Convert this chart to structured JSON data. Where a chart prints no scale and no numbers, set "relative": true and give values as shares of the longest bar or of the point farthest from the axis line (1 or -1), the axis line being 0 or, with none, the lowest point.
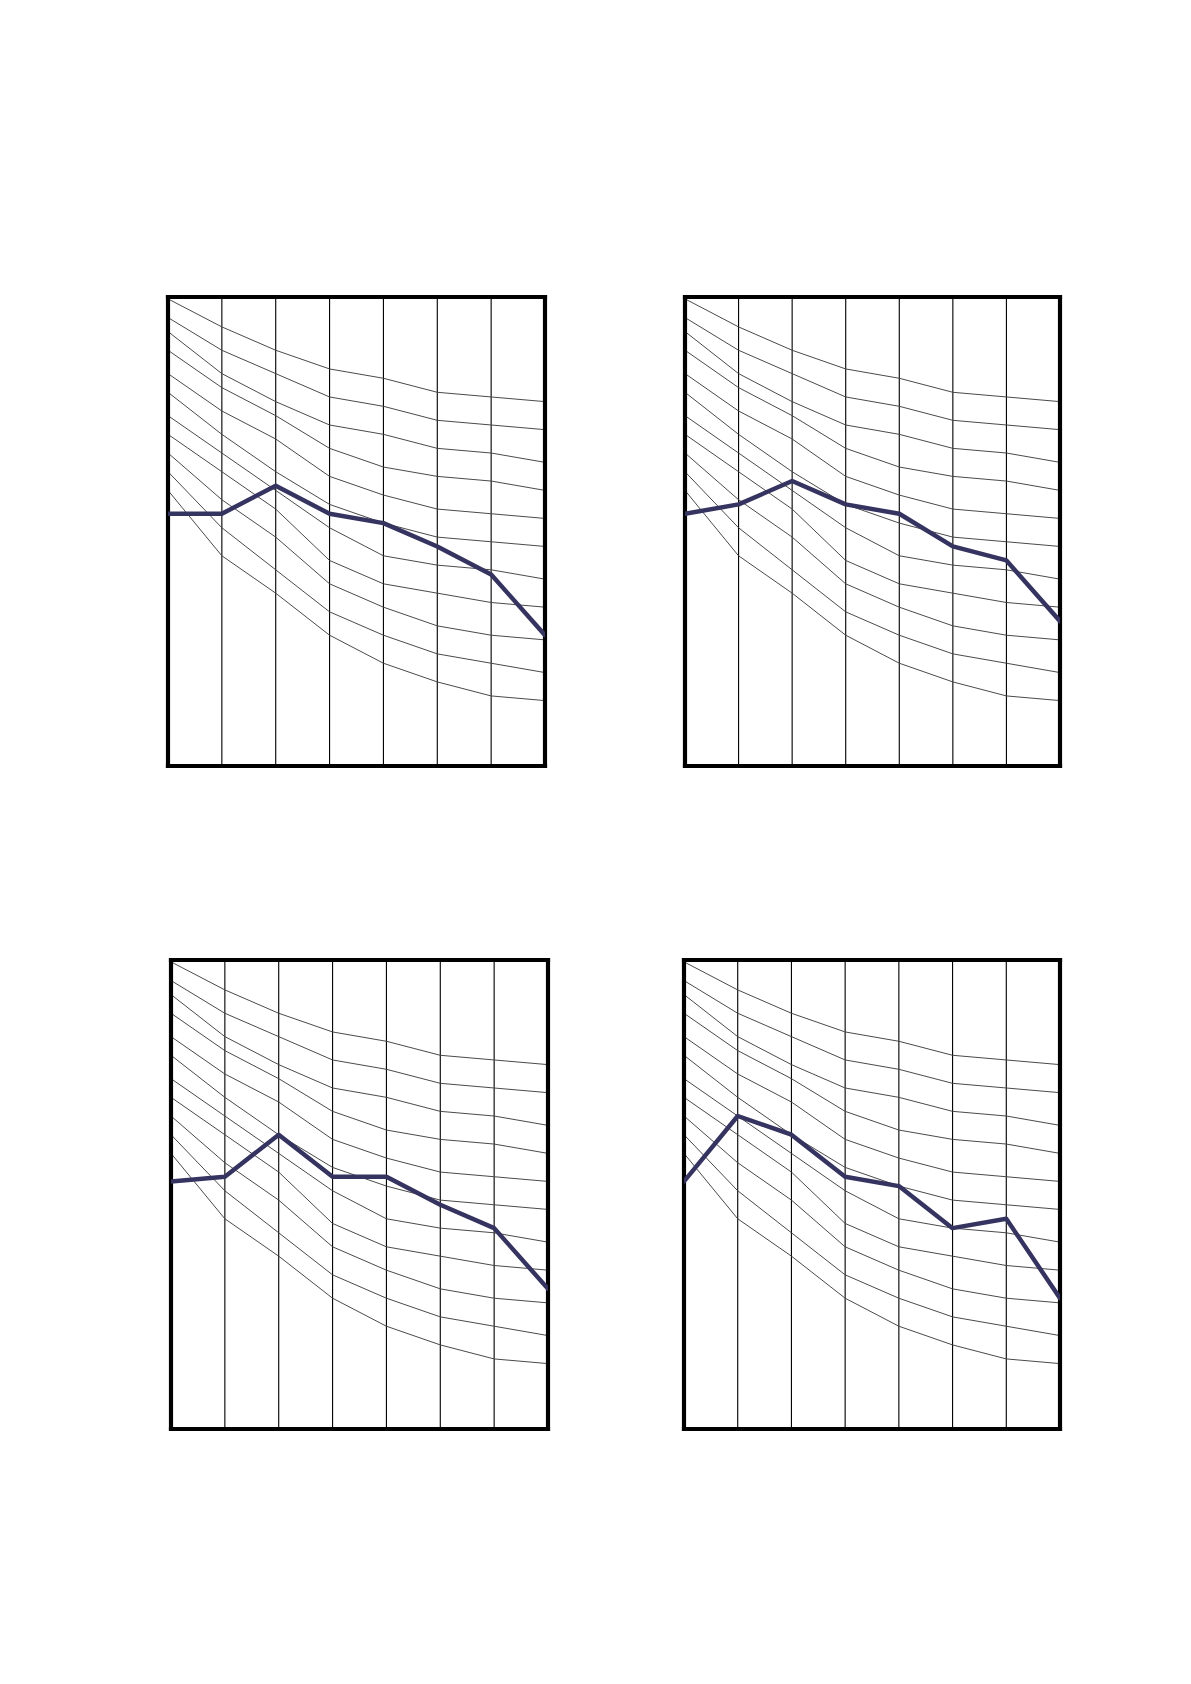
{
  "chart_data": [
    {
      "type": "line",
      "relative": true,
      "grid": "x",
      "categories": [
        null,
        null,
        null,
        null,
        null,
        null,
        null,
        null
      ],
      "series": [
        {
          "color": "#444444",
          "values": [
            1.0,
            0.94,
            0.89,
            0.85,
            0.83,
            0.8,
            0.79,
            0.78
          ]
        },
        {
          "color": "#444444",
          "values": [
            0.96,
            0.89,
            0.84,
            0.79,
            0.77,
            0.74,
            0.73,
            0.72
          ]
        },
        {
          "color": "#444444",
          "values": [
            0.93,
            0.84,
            0.78,
            0.73,
            0.71,
            0.68,
            0.67,
            0.65
          ]
        },
        {
          "color": "#444444",
          "values": [
            0.89,
            0.81,
            0.75,
            0.68,
            0.64,
            0.62,
            0.61,
            0.59
          ]
        },
        {
          "color": "#444444",
          "values": [
            0.84,
            0.76,
            0.7,
            0.62,
            0.58,
            0.55,
            0.54,
            0.53
          ]
        },
        {
          "color": "#444444",
          "values": [
            0.8,
            0.71,
            0.63,
            0.56,
            0.52,
            0.49,
            0.48,
            0.47
          ]
        },
        {
          "color": "#444444",
          "values": [
            0.75,
            0.67,
            0.59,
            0.51,
            0.45,
            0.43,
            0.42,
            0.4
          ]
        },
        {
          "color": "#444444",
          "values": [
            0.71,
            0.63,
            0.55,
            0.44,
            0.39,
            0.37,
            0.35,
            0.34
          ]
        },
        {
          "color": "#444444",
          "values": [
            0.67,
            0.57,
            0.49,
            0.39,
            0.34,
            0.3,
            0.28,
            0.27
          ]
        },
        {
          "color": "#444444",
          "values": [
            0.63,
            0.51,
            0.42,
            0.33,
            0.28,
            0.24,
            0.22,
            0.2
          ]
        },
        {
          "color": "#444444",
          "values": [
            0.59,
            0.45,
            0.37,
            0.28,
            0.22,
            0.18,
            0.15,
            0.14
          ]
        },
        {
          "color": "#35335f",
          "values": [
            0.54,
            0.54,
            0.6,
            0.54,
            0.52,
            0.47,
            0.41,
            0.28
          ]
        }
      ]
    },
    {
      "type": "line",
      "relative": true,
      "grid": "x",
      "categories": [
        null,
        null,
        null,
        null,
        null,
        null,
        null,
        null
      ],
      "series": [
        {
          "color": "#444444",
          "values": [
            1.0,
            0.94,
            0.89,
            0.85,
            0.83,
            0.8,
            0.79,
            0.78
          ]
        },
        {
          "color": "#444444",
          "values": [
            0.96,
            0.89,
            0.84,
            0.79,
            0.77,
            0.74,
            0.73,
            0.72
          ]
        },
        {
          "color": "#444444",
          "values": [
            0.93,
            0.84,
            0.78,
            0.73,
            0.71,
            0.68,
            0.67,
            0.65
          ]
        },
        {
          "color": "#444444",
          "values": [
            0.89,
            0.81,
            0.75,
            0.68,
            0.64,
            0.62,
            0.61,
            0.59
          ]
        },
        {
          "color": "#444444",
          "values": [
            0.84,
            0.76,
            0.7,
            0.62,
            0.58,
            0.55,
            0.54,
            0.53
          ]
        },
        {
          "color": "#444444",
          "values": [
            0.8,
            0.71,
            0.63,
            0.56,
            0.52,
            0.49,
            0.48,
            0.47
          ]
        },
        {
          "color": "#444444",
          "values": [
            0.75,
            0.67,
            0.59,
            0.51,
            0.45,
            0.43,
            0.42,
            0.4
          ]
        },
        {
          "color": "#444444",
          "values": [
            0.71,
            0.63,
            0.55,
            0.44,
            0.39,
            0.37,
            0.35,
            0.34
          ]
        },
        {
          "color": "#444444",
          "values": [
            0.67,
            0.57,
            0.49,
            0.39,
            0.34,
            0.3,
            0.28,
            0.27
          ]
        },
        {
          "color": "#444444",
          "values": [
            0.63,
            0.51,
            0.42,
            0.33,
            0.28,
            0.24,
            0.22,
            0.2
          ]
        },
        {
          "color": "#444444",
          "values": [
            0.59,
            0.45,
            0.37,
            0.28,
            0.22,
            0.18,
            0.15,
            0.14
          ]
        },
        {
          "color": "#35335f",
          "values": [
            0.54,
            0.56,
            0.61,
            0.56,
            0.54,
            0.47,
            0.44,
            0.31
          ]
        }
      ]
    },
    {
      "type": "line",
      "relative": true,
      "grid": "x",
      "categories": [
        null,
        null,
        null,
        null,
        null,
        null,
        null,
        null
      ],
      "series": [
        {
          "color": "#444444",
          "values": [
            1.0,
            0.94,
            0.89,
            0.85,
            0.83,
            0.8,
            0.79,
            0.78
          ]
        },
        {
          "color": "#444444",
          "values": [
            0.96,
            0.89,
            0.84,
            0.79,
            0.77,
            0.74,
            0.73,
            0.72
          ]
        },
        {
          "color": "#444444",
          "values": [
            0.93,
            0.84,
            0.78,
            0.73,
            0.71,
            0.68,
            0.67,
            0.65
          ]
        },
        {
          "color": "#444444",
          "values": [
            0.89,
            0.81,
            0.75,
            0.68,
            0.64,
            0.62,
            0.61,
            0.59
          ]
        },
        {
          "color": "#444444",
          "values": [
            0.84,
            0.76,
            0.7,
            0.62,
            0.58,
            0.55,
            0.54,
            0.53
          ]
        },
        {
          "color": "#444444",
          "values": [
            0.8,
            0.71,
            0.63,
            0.56,
            0.52,
            0.49,
            0.48,
            0.47
          ]
        },
        {
          "color": "#444444",
          "values": [
            0.75,
            0.67,
            0.59,
            0.51,
            0.45,
            0.43,
            0.42,
            0.4
          ]
        },
        {
          "color": "#444444",
          "values": [
            0.71,
            0.63,
            0.55,
            0.44,
            0.39,
            0.37,
            0.35,
            0.34
          ]
        },
        {
          "color": "#444444",
          "values": [
            0.67,
            0.57,
            0.49,
            0.39,
            0.34,
            0.3,
            0.28,
            0.27
          ]
        },
        {
          "color": "#444444",
          "values": [
            0.63,
            0.51,
            0.42,
            0.33,
            0.28,
            0.24,
            0.22,
            0.2
          ]
        },
        {
          "color": "#444444",
          "values": [
            0.59,
            0.45,
            0.37,
            0.28,
            0.22,
            0.18,
            0.15,
            0.14
          ]
        },
        {
          "color": "#35335f",
          "values": [
            0.53,
            0.54,
            0.63,
            0.54,
            0.54,
            0.48,
            0.43,
            0.3
          ]
        }
      ]
    },
    {
      "type": "line",
      "relative": true,
      "grid": "x",
      "categories": [
        null,
        null,
        null,
        null,
        null,
        null,
        null,
        null
      ],
      "series": [
        {
          "color": "#444444",
          "values": [
            1.0,
            0.94,
            0.89,
            0.85,
            0.83,
            0.8,
            0.79,
            0.78
          ]
        },
        {
          "color": "#444444",
          "values": [
            0.96,
            0.89,
            0.84,
            0.79,
            0.77,
            0.74,
            0.73,
            0.72
          ]
        },
        {
          "color": "#444444",
          "values": [
            0.93,
            0.84,
            0.78,
            0.73,
            0.71,
            0.68,
            0.67,
            0.65
          ]
        },
        {
          "color": "#444444",
          "values": [
            0.89,
            0.81,
            0.75,
            0.68,
            0.64,
            0.62,
            0.61,
            0.59
          ]
        },
        {
          "color": "#444444",
          "values": [
            0.84,
            0.76,
            0.7,
            0.62,
            0.58,
            0.55,
            0.54,
            0.53
          ]
        },
        {
          "color": "#444444",
          "values": [
            0.8,
            0.71,
            0.63,
            0.56,
            0.52,
            0.49,
            0.48,
            0.47
          ]
        },
        {
          "color": "#444444",
          "values": [
            0.75,
            0.67,
            0.59,
            0.51,
            0.45,
            0.43,
            0.42,
            0.4
          ]
        },
        {
          "color": "#444444",
          "values": [
            0.71,
            0.63,
            0.55,
            0.44,
            0.39,
            0.37,
            0.35,
            0.34
          ]
        },
        {
          "color": "#444444",
          "values": [
            0.67,
            0.57,
            0.49,
            0.39,
            0.34,
            0.3,
            0.28,
            0.27
          ]
        },
        {
          "color": "#444444",
          "values": [
            0.63,
            0.51,
            0.42,
            0.33,
            0.28,
            0.24,
            0.22,
            0.2
          ]
        },
        {
          "color": "#444444",
          "values": [
            0.59,
            0.45,
            0.37,
            0.28,
            0.22,
            0.18,
            0.15,
            0.14
          ]
        },
        {
          "color": "#35335f",
          "values": [
            0.53,
            0.67,
            0.63,
            0.54,
            0.52,
            0.43,
            0.45,
            0.28
          ]
        }
      ]
    }
  ]
}
